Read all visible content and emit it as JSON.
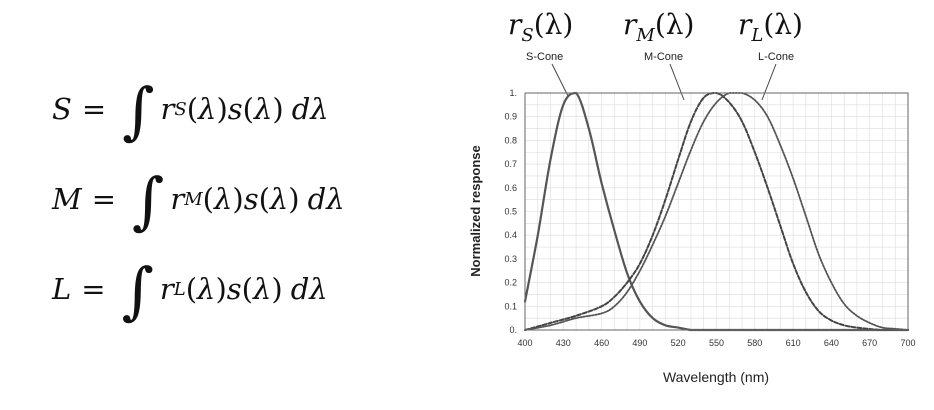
{
  "equations": [
    {
      "lhs": "S",
      "sub": "S"
    },
    {
      "lhs": "M",
      "sub": "M"
    },
    {
      "lhs": "L",
      "sub": "L"
    }
  ],
  "cone_headers": [
    {
      "symbol": "r",
      "sub": "S",
      "arg": "(λ)",
      "label": "S-Cone"
    },
    {
      "symbol": "r",
      "sub": "M",
      "arg": "(λ)",
      "label": "M-Cone"
    },
    {
      "symbol": "r",
      "sub": "L",
      "arg": "(λ)",
      "label": "L-Cone"
    }
  ],
  "chart_data": {
    "type": "line",
    "xlabel": "Wavelength (nm)",
    "ylabel": "Normalized response",
    "xlim": [
      400,
      700
    ],
    "ylim": [
      0,
      1
    ],
    "xticks": [
      "400",
      "430",
      "460",
      "490",
      "520",
      "550",
      "580",
      "610",
      "640",
      "670",
      "700"
    ],
    "yticks": [
      "0.",
      "0.1",
      "0.2",
      "0.3",
      "0.4",
      "0.5",
      "0.6",
      "0.7",
      "0.8",
      "0.9",
      "1."
    ],
    "grid": true,
    "series": [
      {
        "name": "S-Cone",
        "style": "solid",
        "x": [
          400,
          410,
          420,
          430,
          440,
          450,
          460,
          470,
          480,
          490,
          500,
          510,
          520,
          530,
          540,
          550,
          560,
          700
        ],
        "y": [
          0.12,
          0.4,
          0.72,
          0.95,
          1.0,
          0.85,
          0.62,
          0.42,
          0.24,
          0.12,
          0.05,
          0.02,
          0.01,
          0.0,
          0.0,
          0.0,
          0.0,
          0.0
        ]
      },
      {
        "name": "M-Cone",
        "style": "dashed",
        "x": [
          400,
          420,
          440,
          460,
          470,
          480,
          490,
          500,
          510,
          520,
          530,
          540,
          550,
          560,
          570,
          580,
          590,
          600,
          610,
          620,
          630,
          640,
          650,
          660,
          680,
          700
        ],
        "y": [
          0.0,
          0.03,
          0.06,
          0.1,
          0.14,
          0.2,
          0.28,
          0.4,
          0.55,
          0.72,
          0.88,
          0.98,
          1.0,
          0.96,
          0.88,
          0.75,
          0.6,
          0.44,
          0.28,
          0.16,
          0.08,
          0.04,
          0.02,
          0.01,
          0.0,
          0.0
        ]
      },
      {
        "name": "L-Cone",
        "style": "dotted",
        "x": [
          400,
          420,
          440,
          460,
          470,
          480,
          490,
          500,
          510,
          520,
          530,
          540,
          550,
          560,
          570,
          580,
          590,
          600,
          610,
          620,
          630,
          640,
          650,
          660,
          670,
          680,
          690,
          700
        ],
        "y": [
          0.0,
          0.02,
          0.05,
          0.07,
          0.1,
          0.16,
          0.25,
          0.36,
          0.48,
          0.62,
          0.76,
          0.88,
          0.96,
          1.0,
          1.0,
          0.97,
          0.9,
          0.78,
          0.64,
          0.48,
          0.32,
          0.2,
          0.11,
          0.06,
          0.03,
          0.01,
          0.005,
          0.0
        ]
      }
    ]
  }
}
